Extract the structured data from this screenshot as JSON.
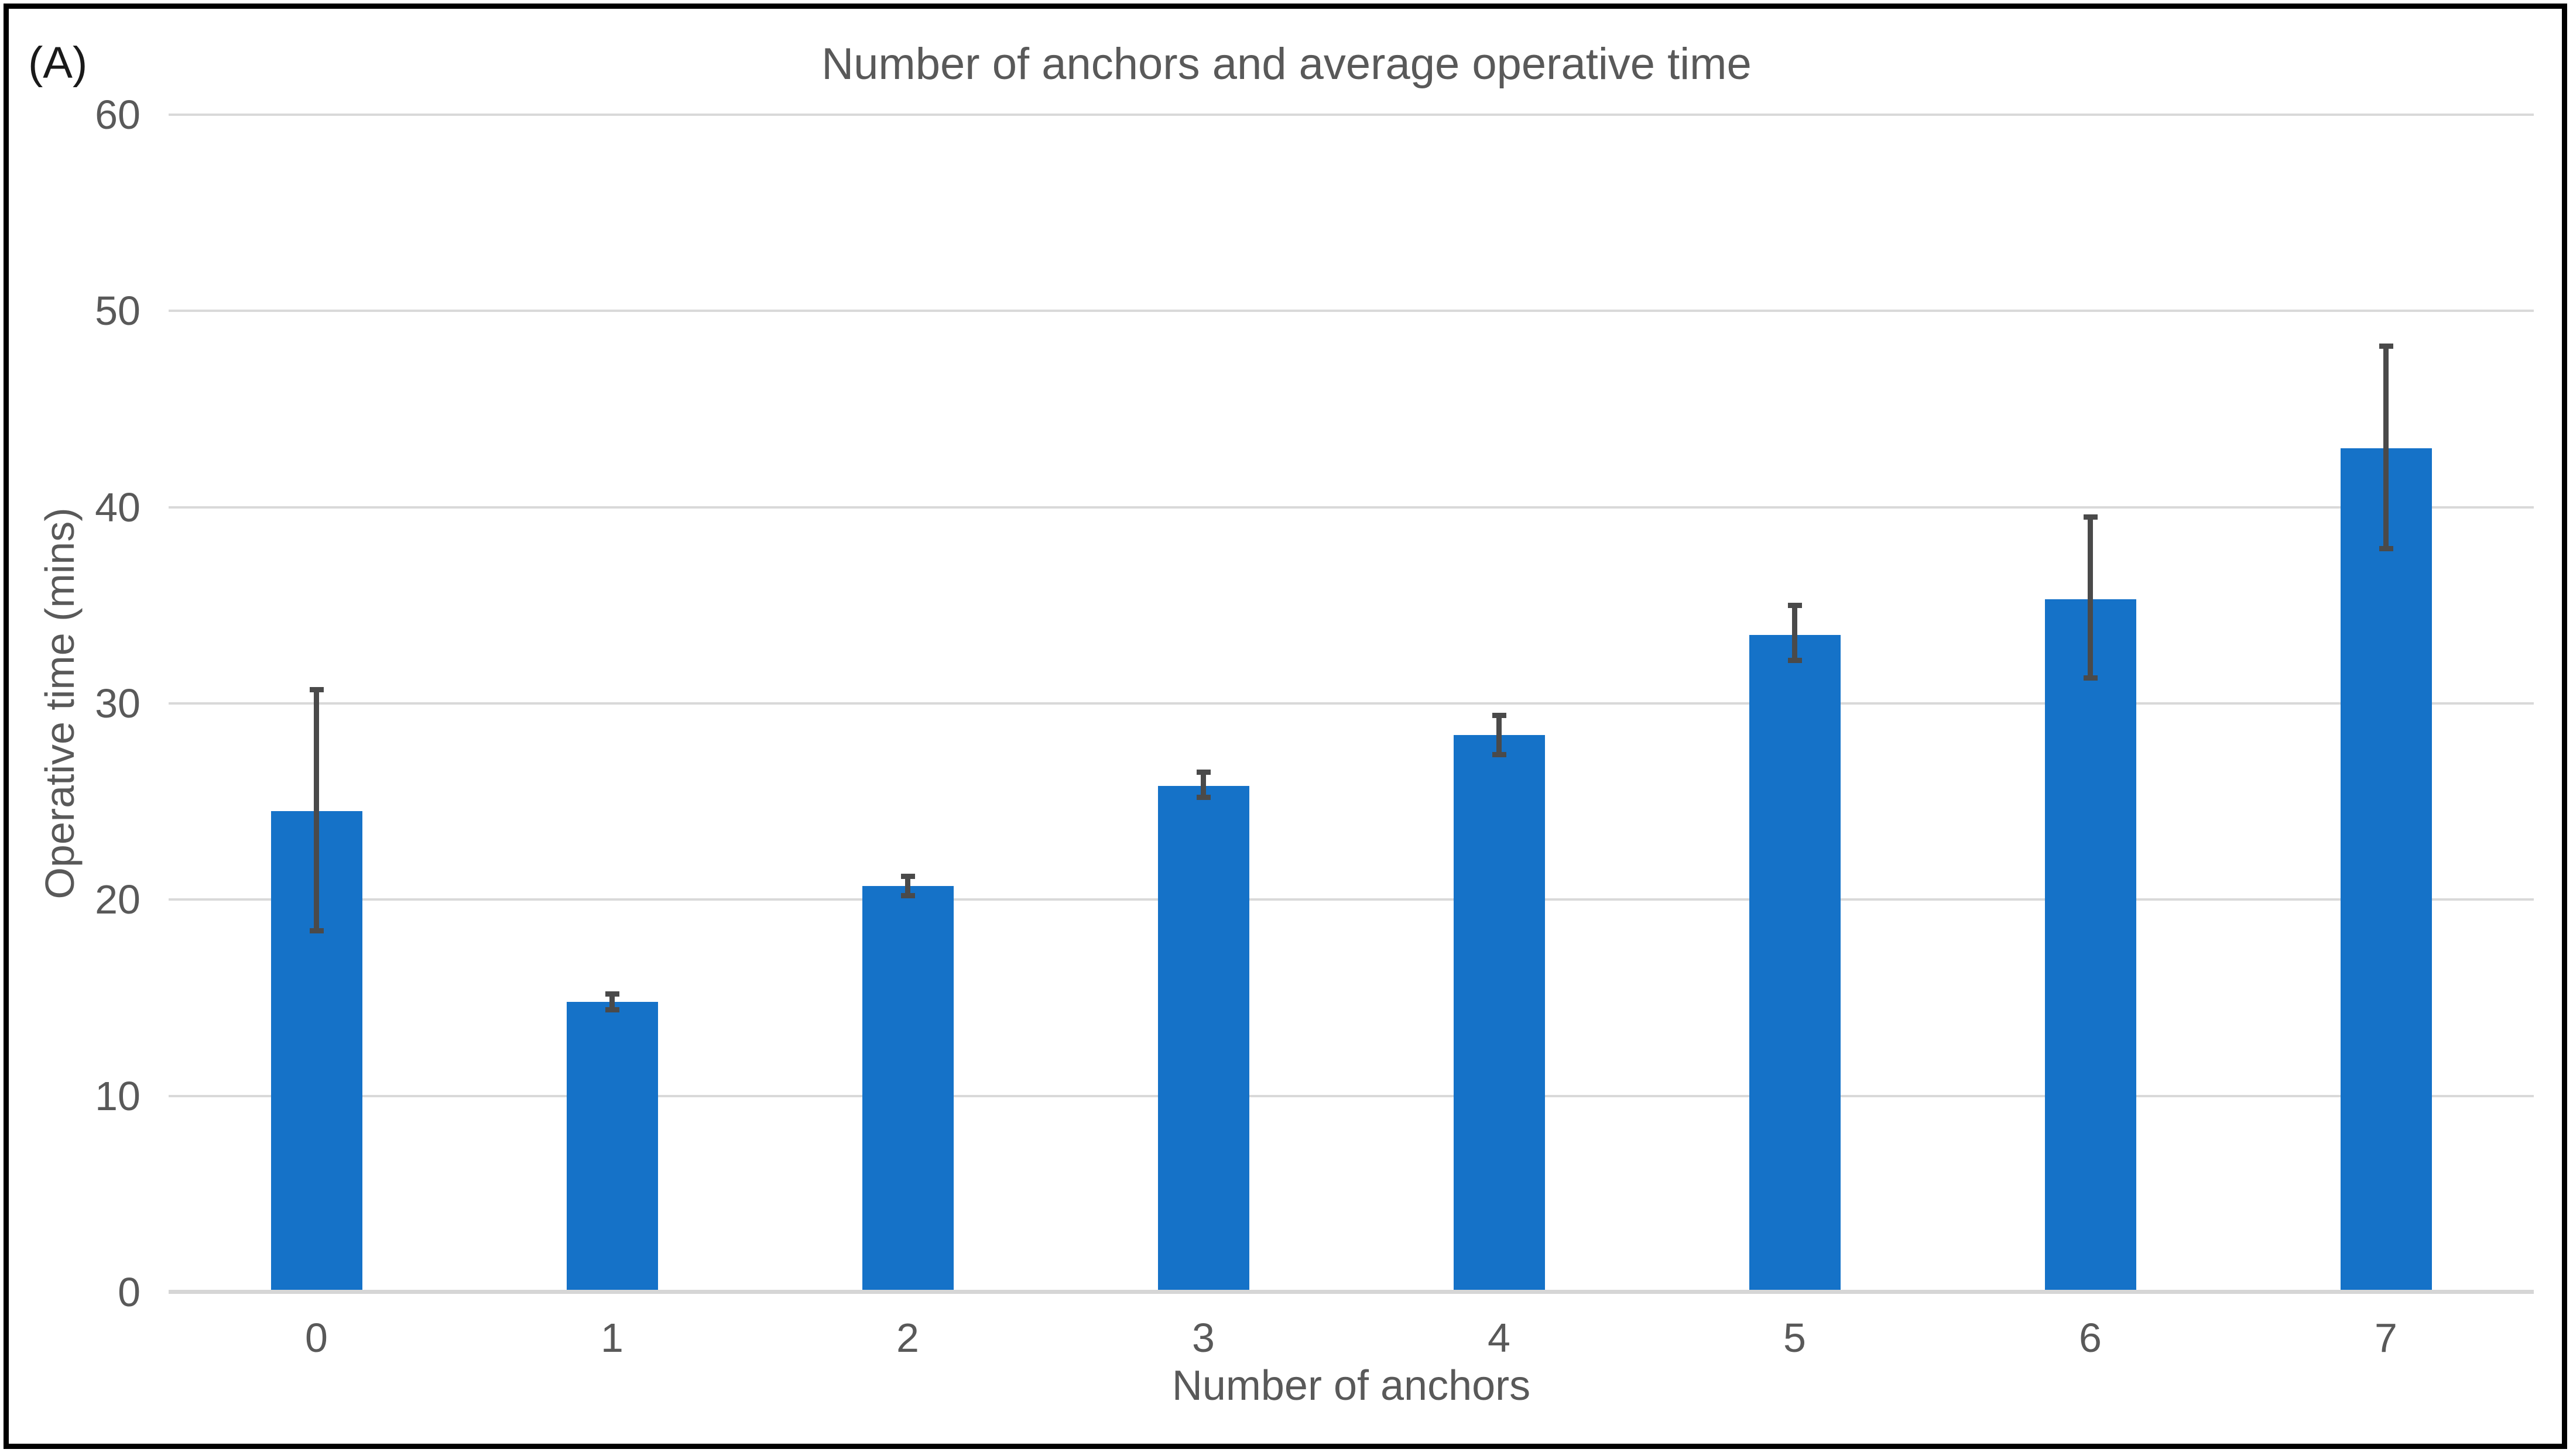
{
  "figure_label": "(A)",
  "chart_data": {
    "type": "bar",
    "title": "Number of anchors and average operative time",
    "xlabel": "Number of anchors",
    "ylabel": "Operative time (mins)",
    "categories": [
      "0",
      "1",
      "2",
      "3",
      "4",
      "5",
      "6",
      "7"
    ],
    "values": [
      24.5,
      14.8,
      20.7,
      25.8,
      28.4,
      33.5,
      35.3,
      43.0
    ],
    "error_low": [
      18.4,
      14.4,
      20.2,
      25.2,
      27.4,
      32.2,
      31.3,
      37.9
    ],
    "error_high": [
      30.7,
      15.2,
      21.2,
      26.5,
      29.4,
      35.0,
      39.5,
      48.2
    ],
    "ylim": [
      0,
      60
    ],
    "yticks": [
      0,
      10,
      20,
      30,
      40,
      50,
      60
    ],
    "grid": true,
    "legend_position": "none",
    "bar_color": "#1572c8",
    "error_bar_color": "#4a4a4a",
    "gridline_color": "#d9d9d9",
    "axis_line_color": "#d6d6d6",
    "text_color": "#595959"
  }
}
